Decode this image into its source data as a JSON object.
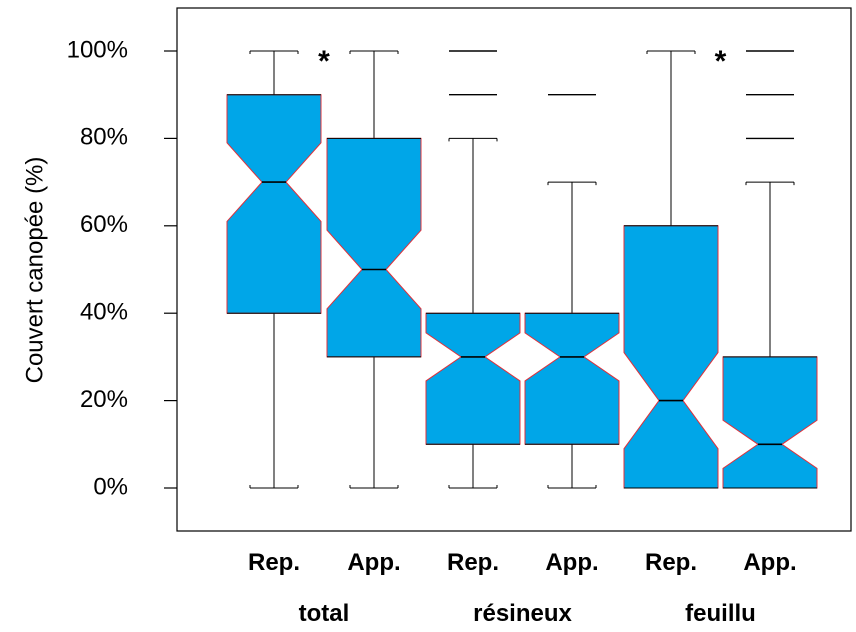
{
  "chart_data": {
    "type": "boxplot",
    "notched": true,
    "ylabel": "Couvert canopée (%)",
    "ylim": [
      0,
      100
    ],
    "yticks": [
      "0%",
      "20%",
      "40%",
      "60%",
      "80%",
      "100%"
    ],
    "categories": [
      "Rep.",
      "App.",
      "Rep.",
      "App.",
      "Rep.",
      "App."
    ],
    "groups": [
      "total",
      "résineux",
      "feuillu"
    ],
    "box_color": "#00a6e8",
    "box_edge_color": "#e0303a",
    "boxes": [
      {
        "category": "Rep.",
        "group": "total",
        "min": 0,
        "q1": 40,
        "median": 70,
        "q3": 90,
        "max": 100,
        "notch_low": 61,
        "notch_high": 79,
        "outliers": []
      },
      {
        "category": "App.",
        "group": "total",
        "min": 0,
        "q1": 30,
        "median": 50,
        "q3": 80,
        "max": 100,
        "notch_low": 41,
        "notch_high": 59,
        "outliers": []
      },
      {
        "category": "Rep.",
        "group": "résineux",
        "min": 0,
        "q1": 10,
        "median": 30,
        "q3": 40,
        "max": 80,
        "notch_low": 24.5,
        "notch_high": 35.5,
        "outliers": [
          90,
          100
        ]
      },
      {
        "category": "App.",
        "group": "résineux",
        "min": 0,
        "q1": 10,
        "median": 30,
        "q3": 40,
        "max": 70,
        "notch_low": 24.5,
        "notch_high": 35.5,
        "outliers": [
          90
        ]
      },
      {
        "category": "Rep.",
        "group": "feuillu",
        "min": 0,
        "q1": 0,
        "median": 20,
        "q3": 60,
        "max": 100,
        "notch_low": 9,
        "notch_high": 31,
        "outliers": []
      },
      {
        "category": "App.",
        "group": "feuillu",
        "min": 0,
        "q1": 0,
        "median": 10,
        "q3": 30,
        "max": 70,
        "notch_low": 4.5,
        "notch_high": 15.5,
        "outliers": [
          80,
          90,
          100
        ]
      }
    ],
    "annotations": [
      {
        "text": "*",
        "between": "total",
        "y": 100
      },
      {
        "text": "*",
        "between": "feuillu",
        "y": 100
      }
    ]
  }
}
